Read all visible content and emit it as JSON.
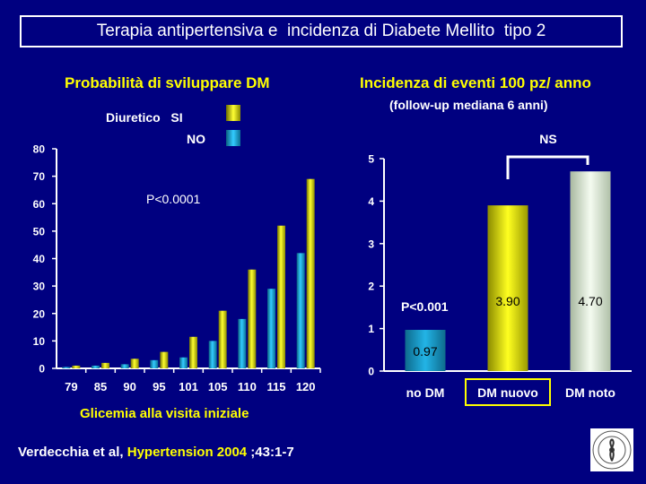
{
  "slide": {
    "title": "Terapia antipertensiva e  incidenza di Diabete Mellito  tipo 2",
    "citation_authors": "Verdecchia et al, ",
    "citation_journal": "Hypertension 2004",
    "citation_rest": " ;43:1-7"
  },
  "colors": {
    "background": "#000080",
    "diuretico_si": "#e6e600",
    "diuretico_no": "#1aa3d9",
    "dm_noto": "#e0eadc",
    "title_yellow": "#ffff00"
  },
  "chart_data": [
    {
      "type": "bar",
      "title": "Probabilità di sviluppare DM",
      "xlabel": "Glicemia alla visita iniziale",
      "ylabel": "",
      "categories": [
        "79",
        "85",
        "90",
        "95",
        "101",
        "105",
        "110",
        "115",
        "120"
      ],
      "series": [
        {
          "name": "SI",
          "values": [
            1,
            2,
            3.5,
            6,
            11.5,
            21,
            36,
            52,
            69
          ]
        },
        {
          "name": "NO",
          "values": [
            0.5,
            1,
            1.5,
            3,
            4,
            10,
            18,
            29,
            42
          ]
        }
      ],
      "legend_title": "Diuretico",
      "ylim": [
        0,
        80
      ],
      "yticks": [
        0,
        10,
        20,
        30,
        40,
        50,
        60,
        70,
        80
      ],
      "annotations": [
        "P<0.0001"
      ],
      "grid": false,
      "legend_position": "top"
    },
    {
      "type": "bar",
      "title": "Incidenza di eventi 100 pz/ anno",
      "subtitle": "(follow-up mediana 6 anni)",
      "xlabel": "",
      "ylabel": "",
      "categories": [
        "no DM",
        "DM nuovo",
        "DM noto"
      ],
      "values": [
        0.97,
        3.9,
        4.7
      ],
      "data_labels": [
        "0.97",
        "3.90",
        "4.70"
      ],
      "ylim": [
        0,
        5
      ],
      "yticks": [
        0,
        1,
        2,
        3,
        4,
        5
      ],
      "annotations": [
        "P<0.001",
        "NS"
      ],
      "highlighted_category": "DM nuovo",
      "grid": false
    }
  ]
}
